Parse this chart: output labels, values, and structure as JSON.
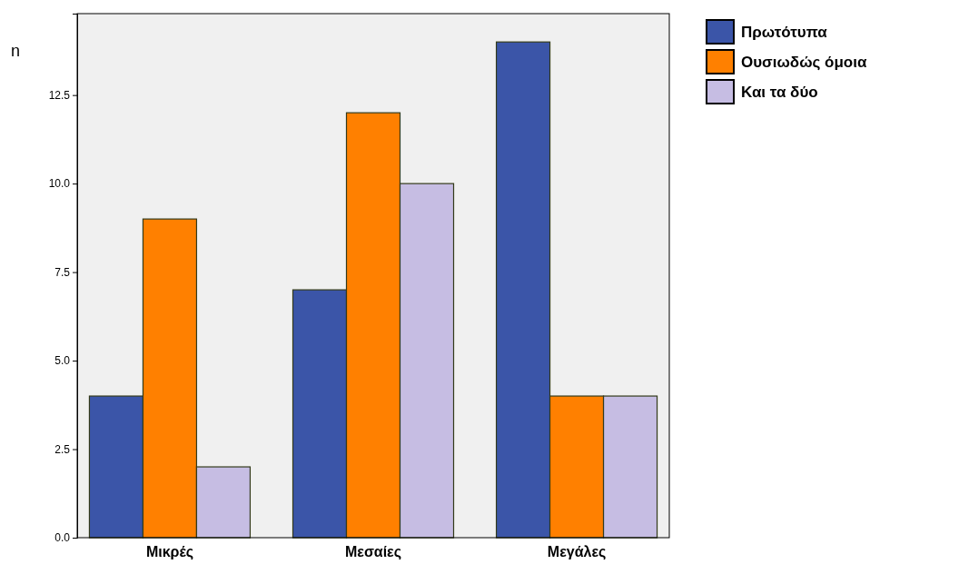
{
  "chart_data": {
    "type": "bar",
    "ylabel": "n",
    "categories": [
      "Μικρές",
      "Μεσαίες",
      "Μεγάλες"
    ],
    "series": [
      {
        "name": "Πρωτότυπα",
        "color": "#3b55a8",
        "values": [
          4,
          7,
          14
        ]
      },
      {
        "name": "Ουσιωδώς όμοια",
        "color": "#ff8000",
        "values": [
          9,
          12,
          4
        ]
      },
      {
        "name": "Και τα δύο",
        "color": "#c6bde3",
        "values": [
          2,
          10,
          4
        ]
      }
    ],
    "ylim": [
      0,
      14.8
    ],
    "yticks": [
      {
        "value": 0,
        "label": "0.0"
      },
      {
        "value": 2.5,
        "label": "2.5"
      },
      {
        "value": 5,
        "label": "5.0"
      },
      {
        "value": 7.5,
        "label": "7.5"
      },
      {
        "value": 10,
        "label": "10.0"
      },
      12.5
    ],
    "grid": false,
    "legend": "top right"
  }
}
